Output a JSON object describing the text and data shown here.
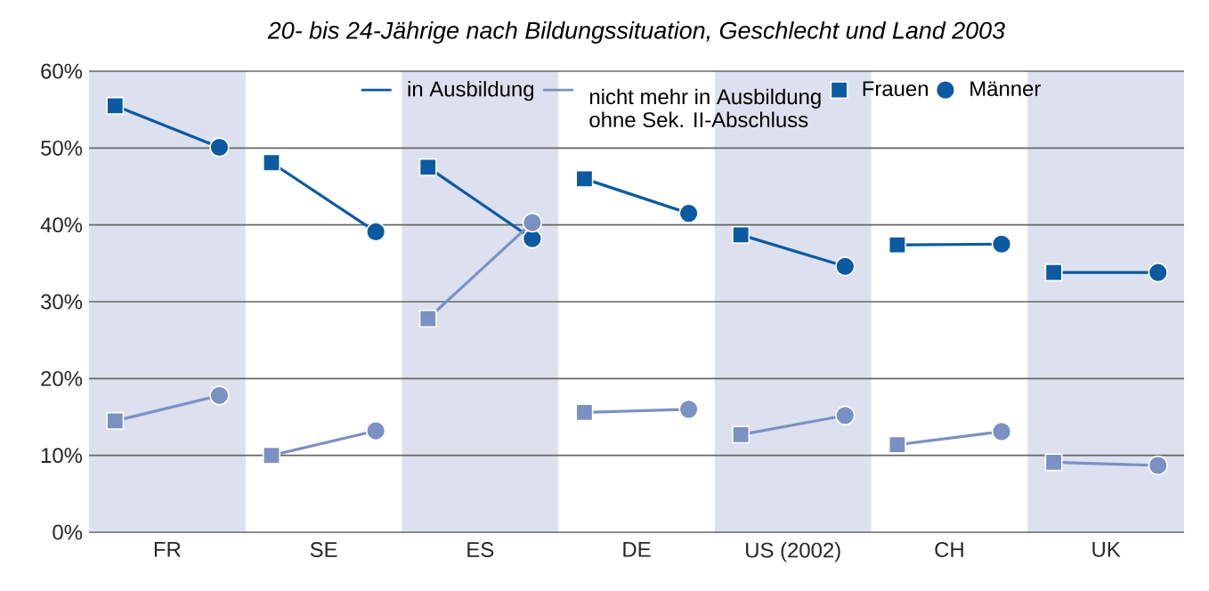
{
  "chart_data": {
    "type": "line",
    "title": "20- bis 24-Jährige nach Bildungssituation, Geschlecht und Land 2003",
    "categories": [
      null,
      "FR",
      null,
      null,
      "SE",
      null,
      null,
      "ES",
      null,
      null,
      "DE",
      null,
      null,
      "US (2002)",
      null,
      null,
      "CH",
      null,
      null,
      "UK",
      null
    ],
    "ylim": [
      0,
      60
    ],
    "yticks": [
      {
        "value": 0,
        "label": "0%"
      },
      {
        "value": 10,
        "label": "10%"
      },
      {
        "value": 20,
        "label": "20%"
      },
      {
        "value": 30,
        "label": "30%"
      },
      {
        "value": 40,
        "label": "40%"
      },
      {
        "value": 50,
        "label": "50%"
      },
      {
        "value": 60,
        "label": "60%"
      }
    ],
    "grid": "y",
    "legend": "top",
    "series": [
      {
        "name": "in Ausbildung",
        "color": "#0b5aa2",
        "marker": "none",
        "line_style": "solid",
        "values": [
          55.5,
          null,
          50.1,
          null,
          null,
          null,
          null,
          null,
          null,
          null,
          null,
          null,
          null,
          null,
          null,
          null,
          null,
          null,
          null,
          null,
          null
        ]
      },
      {
        "color": "#0b5aa2",
        "marker": "none",
        "line_style": "solid",
        "values": [
          null,
          null,
          null,
          48.1,
          null,
          39.1,
          null,
          null,
          null,
          null,
          null,
          null,
          null,
          null,
          null,
          null,
          null,
          null,
          null,
          null,
          null
        ]
      },
      {
        "color": "#0b5aa2",
        "marker": "none",
        "line_style": "solid",
        "values": [
          null,
          null,
          null,
          null,
          null,
          null,
          47.5,
          null,
          38.2,
          null,
          null,
          null,
          null,
          null,
          null,
          null,
          null,
          null,
          null,
          null,
          null
        ]
      },
      {
        "color": "#0b5aa2",
        "marker": "none",
        "line_style": "solid",
        "values": [
          null,
          null,
          null,
          null,
          null,
          null,
          null,
          null,
          null,
          46.0,
          null,
          41.5,
          null,
          null,
          null,
          null,
          null,
          null,
          null,
          null,
          null
        ]
      },
      {
        "color": "#0b5aa2",
        "marker": "none",
        "line_style": "solid",
        "values": [
          null,
          null,
          null,
          null,
          null,
          null,
          null,
          null,
          null,
          null,
          null,
          null,
          38.7,
          null,
          34.6,
          null,
          null,
          null,
          null,
          null,
          null
        ]
      },
      {
        "color": "#0b5aa2",
        "marker": "none",
        "line_style": "solid",
        "values": [
          null,
          null,
          null,
          null,
          null,
          null,
          null,
          null,
          null,
          null,
          null,
          null,
          null,
          null,
          null,
          37.4,
          null,
          37.5,
          null,
          null,
          null
        ]
      },
      {
        "color": "#0b5aa2",
        "marker": "none",
        "line_style": "solid",
        "values": [
          null,
          null,
          null,
          null,
          null,
          null,
          null,
          null,
          null,
          null,
          null,
          null,
          null,
          null,
          null,
          null,
          null,
          null,
          33.8,
          null,
          33.8
        ]
      },
      {
        "name": "nicht mehr in Ausbildung ohne Sek. II-Abschluss",
        "color": "#7b91c4",
        "marker": "none",
        "line_style": "solid",
        "values": [
          14.5,
          null,
          17.8,
          null,
          null,
          null,
          null,
          null,
          null,
          null,
          null,
          null,
          null,
          null,
          null,
          null,
          null,
          null,
          null,
          null,
          null
        ]
      },
      {
        "color": "#7b91c4",
        "marker": "none",
        "line_style": "solid",
        "values": [
          null,
          null,
          null,
          10.0,
          null,
          13.2,
          null,
          null,
          null,
          null,
          null,
          null,
          null,
          null,
          null,
          null,
          null,
          null,
          null,
          null,
          null
        ]
      },
      {
        "color": "#7b91c4",
        "marker": "none",
        "line_style": "solid",
        "values": [
          null,
          null,
          null,
          null,
          null,
          null,
          27.8,
          null,
          40.3,
          null,
          null,
          null,
          null,
          null,
          null,
          null,
          null,
          null,
          null,
          null,
          null
        ]
      },
      {
        "color": "#7b91c4",
        "marker": "none",
        "line_style": "solid",
        "values": [
          null,
          null,
          null,
          null,
          null,
          null,
          null,
          null,
          null,
          15.6,
          null,
          16.0,
          null,
          null,
          null,
          null,
          null,
          null,
          null,
          null,
          null
        ]
      },
      {
        "color": "#7b91c4",
        "marker": "none",
        "line_style": "solid",
        "values": [
          null,
          null,
          null,
          null,
          null,
          null,
          null,
          null,
          null,
          null,
          null,
          null,
          12.7,
          null,
          15.2,
          null,
          null,
          null,
          null,
          null,
          null
        ]
      },
      {
        "color": "#7b91c4",
        "marker": "none",
        "line_style": "solid",
        "values": [
          null,
          null,
          null,
          null,
          null,
          null,
          null,
          null,
          null,
          null,
          null,
          null,
          null,
          null,
          null,
          11.4,
          null,
          13.1,
          null,
          null,
          null
        ]
      },
      {
        "color": "#7b91c4",
        "marker": "none",
        "line_style": "solid",
        "values": [
          null,
          null,
          null,
          null,
          null,
          null,
          null,
          null,
          null,
          null,
          null,
          null,
          null,
          null,
          null,
          null,
          null,
          null,
          9.1,
          null,
          8.7
        ]
      },
      {
        "name": "Frauen",
        "type": "scatter",
        "color": "#0b5aa2",
        "marker": "square",
        "values": [
          55.5,
          null,
          null,
          48.1,
          null,
          null,
          47.5,
          null,
          null,
          46.0,
          null,
          null,
          38.7,
          null,
          null,
          37.4,
          null,
          null,
          33.8,
          null,
          null
        ]
      },
      {
        "name": "Männer",
        "type": "scatter",
        "color": "#0b5aa2",
        "marker": "circle",
        "values": [
          null,
          null,
          50.1,
          null,
          null,
          39.1,
          null,
          null,
          38.2,
          null,
          null,
          41.5,
          null,
          null,
          34.6,
          null,
          null,
          37.5,
          null,
          null,
          33.8
        ]
      },
      {
        "type": "scatter",
        "color": "#7b91c4",
        "marker": "square",
        "values": [
          14.5,
          null,
          null,
          10.0,
          null,
          null,
          27.8,
          null,
          null,
          15.6,
          null,
          null,
          12.7,
          null,
          null,
          11.4,
          null,
          null,
          9.1,
          null,
          null
        ]
      },
      {
        "type": "scatter",
        "color": "#7b91c4",
        "marker": "circle",
        "values": [
          null,
          null,
          17.8,
          null,
          null,
          13.2,
          null,
          null,
          40.3,
          null,
          null,
          16.0,
          null,
          null,
          15.2,
          null,
          null,
          13.1,
          null,
          null,
          8.7
        ]
      }
    ]
  }
}
